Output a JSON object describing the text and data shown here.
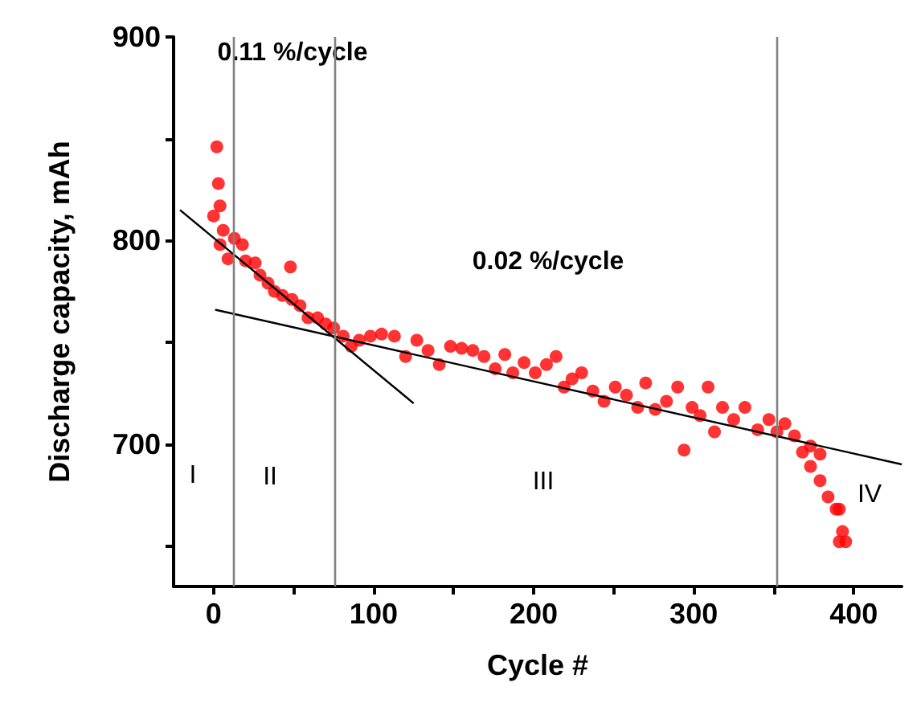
{
  "chart_data": {
    "type": "scatter",
    "xlabel": "Cycle #",
    "ylabel": "Discharge capacity, mAh",
    "xlim": [
      -25,
      430
    ],
    "ylim": [
      630,
      900
    ],
    "xticks": [
      0,
      {
        "value": 50,
        "label": null
      },
      100,
      {
        "value": 150,
        "label": null
      },
      200,
      {
        "value": 250,
        "label": null
      },
      300,
      {
        "value": 350,
        "label": null
      },
      400
    ],
    "yticks": [
      {
        "value": 650,
        "label": null
      },
      700,
      {
        "value": 750,
        "label": null
      },
      800,
      {
        "value": 850,
        "label": null
      },
      900
    ],
    "grid": false,
    "series": [
      {
        "color": "#ff0000",
        "marker": "circle",
        "x": [
          0,
          2,
          3,
          4,
          6,
          4,
          9,
          13,
          18,
          20,
          26,
          29,
          34,
          38,
          48,
          43,
          49,
          54,
          59,
          65,
          70,
          75,
          81,
          86,
          91,
          98,
          105,
          113,
          120,
          127,
          134,
          141,
          148,
          155,
          162,
          169,
          176,
          182,
          187,
          194,
          201,
          208,
          214,
          219,
          224,
          230,
          237,
          244,
          251,
          258,
          265,
          270,
          276,
          283,
          290,
          294,
          299,
          304,
          309,
          313,
          318,
          325,
          332,
          340,
          347,
          352,
          357,
          363,
          368,
          373,
          379,
          373,
          379,
          384,
          389,
          393,
          391,
          395,
          391
        ],
        "values": [
          812,
          846,
          828,
          817,
          805,
          798,
          791,
          801,
          798,
          790,
          789,
          783,
          779,
          775,
          787,
          773,
          771,
          768,
          762,
          762,
          759,
          757,
          753,
          748,
          751,
          753,
          754,
          753,
          743,
          751,
          746,
          739,
          748,
          747,
          746,
          743,
          737,
          744,
          735,
          740,
          735,
          739,
          743,
          728,
          732,
          735,
          726,
          721,
          728,
          724,
          718,
          730,
          717,
          721,
          728,
          697,
          718,
          714,
          728,
          706,
          718,
          712,
          718,
          707,
          712,
          706,
          710,
          704,
          696,
          699,
          695,
          689,
          682,
          674,
          668,
          657,
          668,
          652,
          652
        ]
      },
      {
        "type": "line",
        "marker": "none",
        "color": "#000000",
        "x": [
          -21,
          125
        ],
        "values": [
          815,
          720
        ]
      },
      {
        "type": "line",
        "marker": "none",
        "color": "#000000",
        "x": [
          1,
          430
        ],
        "values": [
          766,
          690
        ]
      }
    ],
    "ref_lines": [
      {
        "axis": "x",
        "value": 12,
        "color": "#808080"
      },
      {
        "axis": "x",
        "value": 76,
        "color": "#808080"
      },
      {
        "axis": "x",
        "value": 352,
        "color": "#808080"
      }
    ],
    "annotations": [
      "0.11 %/cycle",
      "0.02 %/cycle",
      "I",
      "II",
      "III",
      "IV"
    ]
  }
}
